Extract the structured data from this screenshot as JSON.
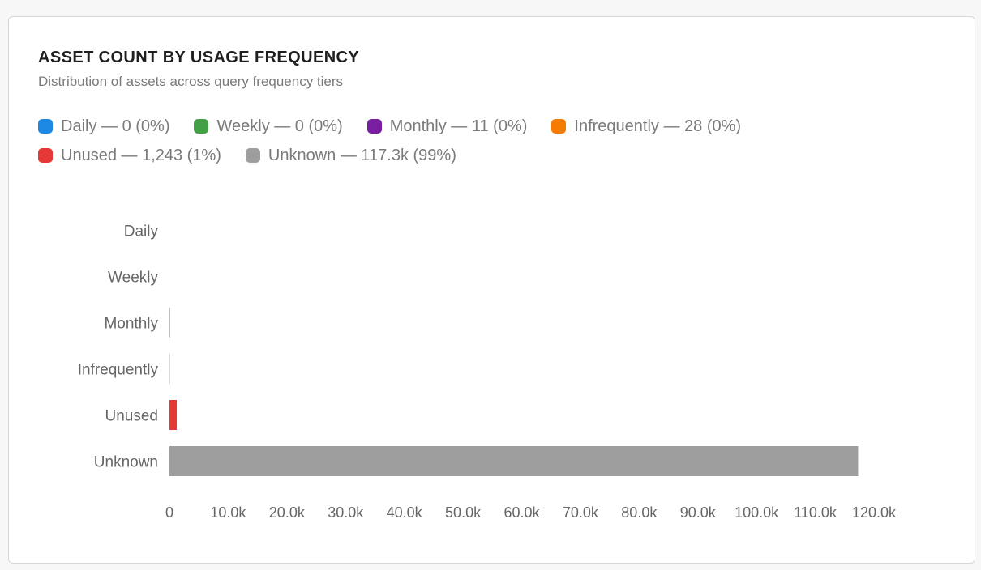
{
  "card": {
    "title": "ASSET COUNT BY USAGE FREQUENCY",
    "subtitle": "Distribution of assets across query frequency tiers"
  },
  "legend": [
    {
      "label": "Daily — 0 (0%)",
      "color": "#1e88e5",
      "icon": "daily-swatch"
    },
    {
      "label": "Weekly — 0 (0%)",
      "color": "#43a047",
      "icon": "weekly-swatch"
    },
    {
      "label": "Monthly — 11 (0%)",
      "color": "#7b1fa2",
      "icon": "monthly-swatch"
    },
    {
      "label": "Infrequently — 28 (0%)",
      "color": "#f57c00",
      "icon": "infrequently-swatch"
    },
    {
      "label": "Unused — 1,243 (1%)",
      "color": "#e53935",
      "icon": "unused-swatch"
    },
    {
      "label": "Unknown — 117.3k (99%)",
      "color": "#9e9e9e",
      "icon": "unknown-swatch"
    }
  ],
  "chart_data": {
    "type": "bar",
    "orientation": "horizontal",
    "title": "ASSET COUNT BY USAGE FREQUENCY",
    "subtitle": "Distribution of assets across query frequency tiers",
    "categories": [
      "Daily",
      "Weekly",
      "Monthly",
      "Infrequently",
      "Unused",
      "Unknown"
    ],
    "values": [
      0,
      0,
      11,
      28,
      1243,
      117300
    ],
    "colors": [
      "#1e88e5",
      "#43a047",
      "#7b1fa2",
      "#f57c00",
      "#e53935",
      "#9e9e9e"
    ],
    "xlim": [
      0,
      120000
    ],
    "xticks": [
      0,
      10000,
      20000,
      30000,
      40000,
      50000,
      60000,
      70000,
      80000,
      90000,
      100000,
      110000,
      120000
    ],
    "xtick_labels": [
      "0",
      "10.0k",
      "20.0k",
      "30.0k",
      "40.0k",
      "50.0k",
      "60.0k",
      "70.0k",
      "80.0k",
      "90.0k",
      "100.0k",
      "110.0k",
      "120.0k"
    ],
    "xlabel": "",
    "ylabel": "",
    "grid": false,
    "legend_position": "top-left"
  }
}
